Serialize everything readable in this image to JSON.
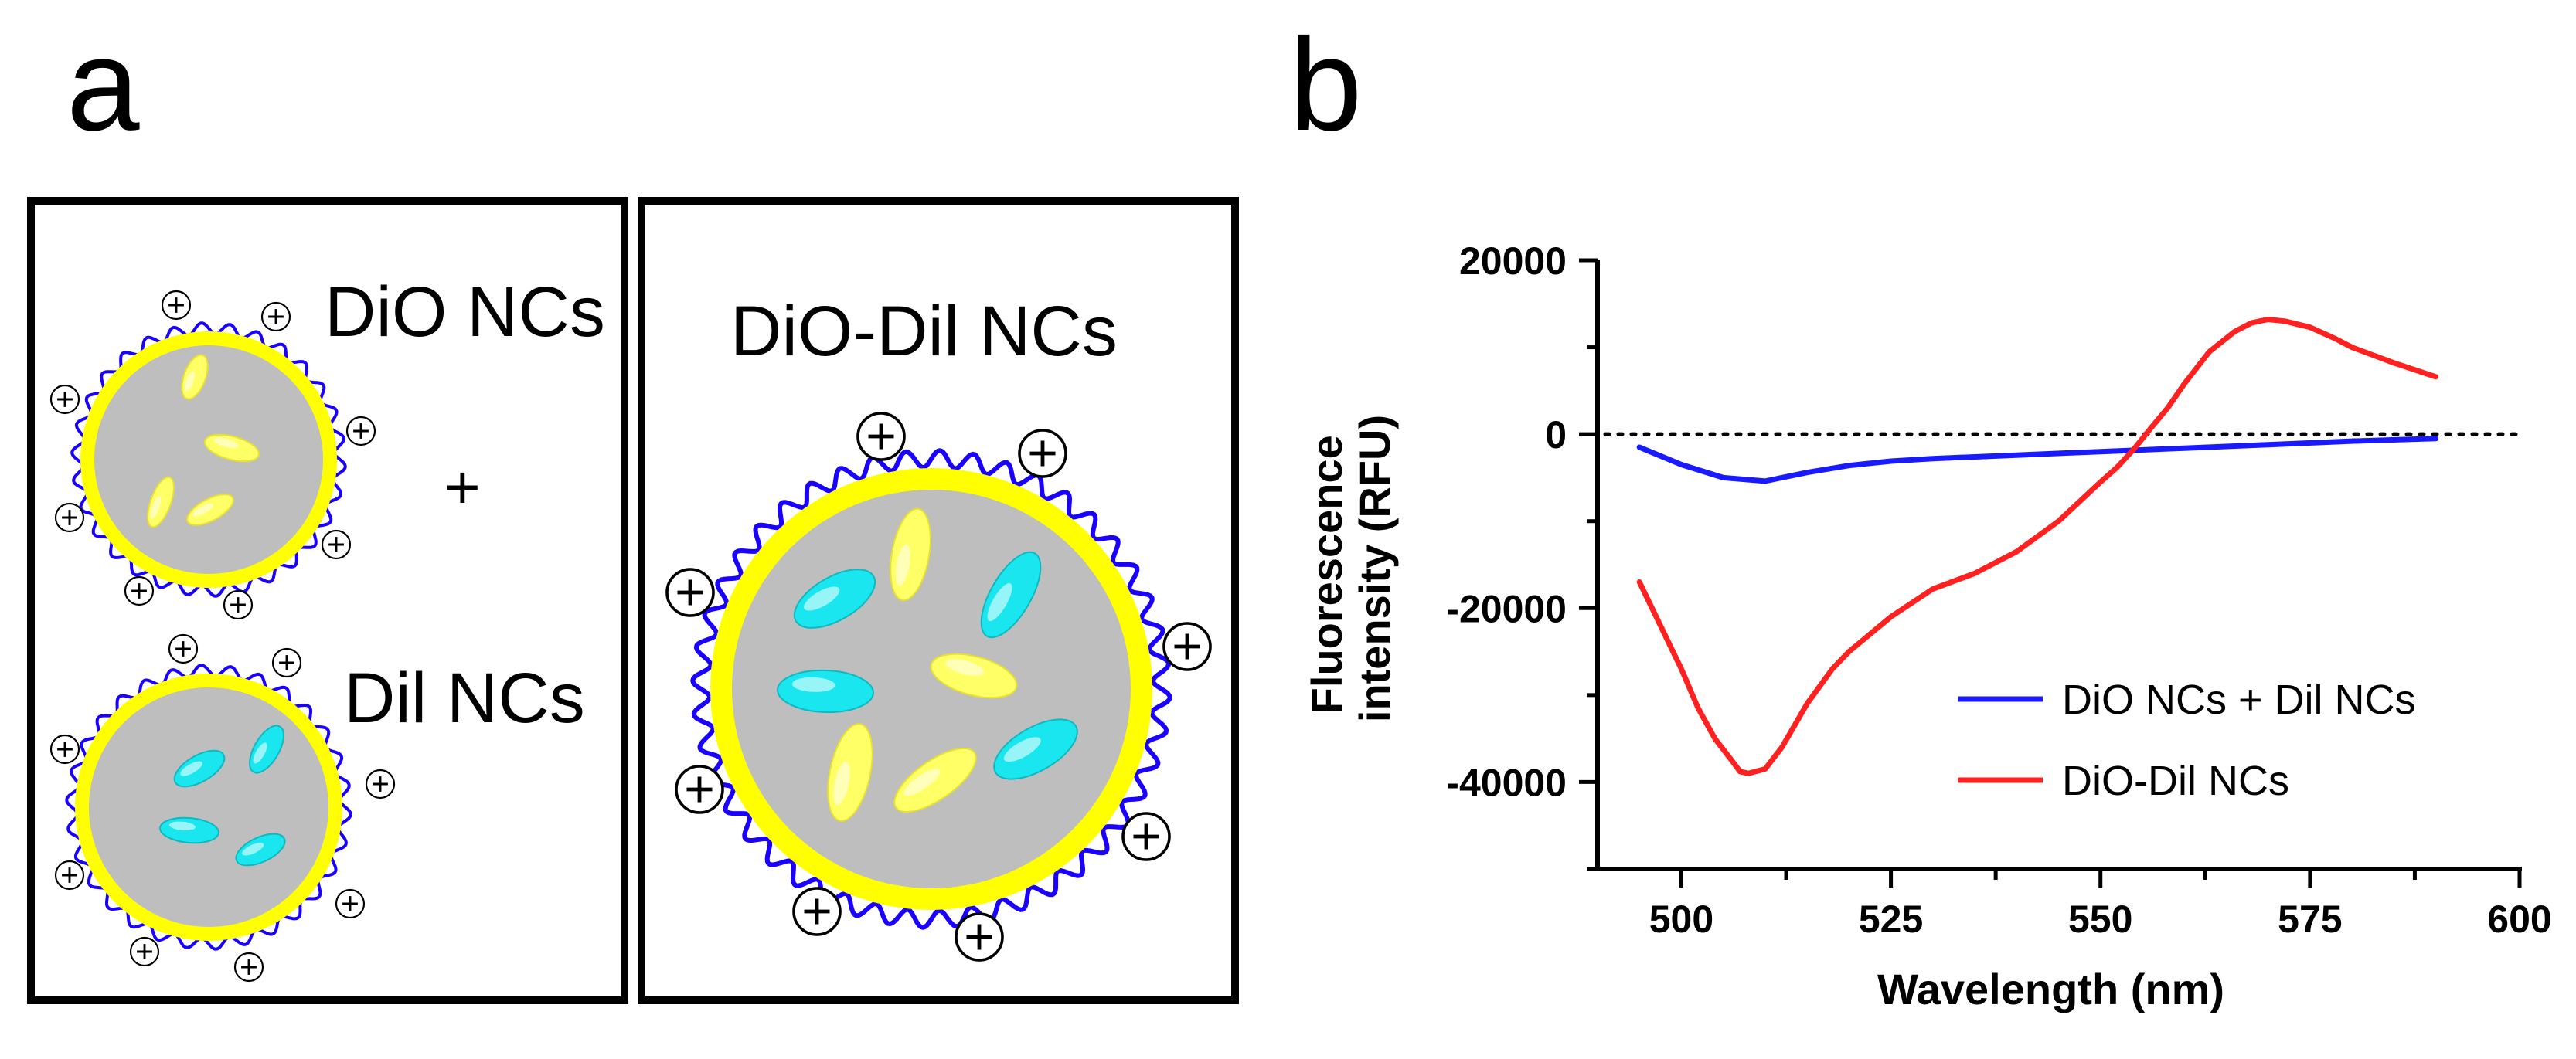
{
  "figure": {
    "panel_a": {
      "letter": "a",
      "box1": {
        "label_dio": "DiO NCs",
        "plus": "+",
        "label_dil": "Dil NCs"
      },
      "box2": {
        "label": "DiO-Dil NCs"
      }
    },
    "panel_b": {
      "letter": "b"
    }
  },
  "colors": {
    "core": "#bebebe",
    "shell": "#ffff00",
    "ligand": "#1a00ff",
    "dio_dye": "#ffff66",
    "dil_dye": "#19e6ee",
    "series_mix": "#1a1aff",
    "series_fret": "#ff2020"
  },
  "icons": {
    "charge": "positive-charge-icon"
  },
  "chart_data": {
    "type": "line",
    "title": "",
    "xlabel": "Wavelength (nm)",
    "ylabel_lines": [
      "Fluorescence",
      "intensity (RFU)"
    ],
    "xlim": [
      490,
      600
    ],
    "ylim": [
      -50000,
      20000
    ],
    "xticks": [
      500,
      525,
      550,
      575,
      600
    ],
    "yticks": [
      20000,
      0,
      -20000,
      -40000
    ],
    "zero_line": "dotted",
    "legend_position": "lower-right",
    "series": [
      {
        "name": "DiO NCs + Dil NCs",
        "color": "#1a1aff",
        "x": [
          495,
          500,
          505,
          510,
          515,
          520,
          525,
          530,
          540,
          550,
          560,
          570,
          580,
          590
        ],
        "y": [
          -1500,
          -3500,
          -5000,
          -5400,
          -4400,
          -3600,
          -3100,
          -2800,
          -2400,
          -2000,
          -1600,
          -1200,
          -800,
          -500
        ]
      },
      {
        "name": "DiO-Dil NCs",
        "color": "#ff2020",
        "x": [
          495,
          498,
          500,
          502,
          504,
          506,
          507,
          508,
          510,
          512,
          515,
          518,
          520,
          525,
          530,
          535,
          540,
          545,
          550,
          552,
          554,
          556,
          558,
          560,
          563,
          566,
          568,
          570,
          572,
          575,
          578,
          580,
          585,
          590
        ],
        "y": [
          -17000,
          -23000,
          -27000,
          -31500,
          -35000,
          -37500,
          -38800,
          -39000,
          -38500,
          -36000,
          -31000,
          -27000,
          -25000,
          -21000,
          -17800,
          -16000,
          -13500,
          -10000,
          -5500,
          -3800,
          -1700,
          700,
          3000,
          5800,
          9500,
          11800,
          12800,
          13200,
          13000,
          12300,
          11000,
          10000,
          8200,
          6600
        ]
      }
    ]
  }
}
